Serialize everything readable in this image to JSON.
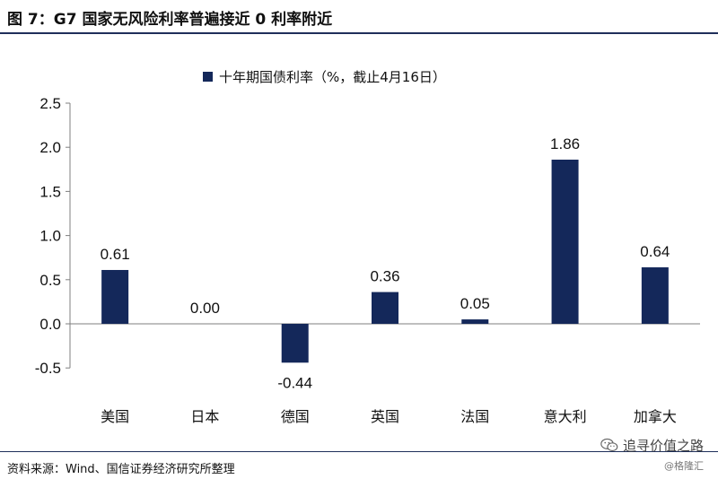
{
  "header": {
    "title": "图 7：G7 国家无风险利率普遍接近 0 利率附近"
  },
  "footer": {
    "source": "资料来源：Wind、国信证券经济研究所整理"
  },
  "watermark": {
    "account": "追寻价值之路",
    "handle": "@格隆汇",
    "icon": "wechat-icon"
  },
  "chart_data": {
    "type": "bar",
    "categories": [
      "美国",
      "日本",
      "德国",
      "英国",
      "法国",
      "意大利",
      "加拿大"
    ],
    "series": [
      {
        "name": "十年期国债利率（%，截止4月16日）",
        "values": [
          0.61,
          0.0,
          -0.44,
          0.36,
          0.05,
          1.86,
          0.64
        ],
        "data_labels": [
          "0.61",
          "0.00",
          "-0.44",
          "0.36",
          "0.05",
          "1.86",
          "0.64"
        ]
      }
    ],
    "yticks": [
      "2.5",
      "2.0",
      "1.5",
      "1.0",
      "0.5",
      "0.0",
      "-0.5"
    ],
    "ylim": [
      -0.5,
      2.5
    ],
    "grid": false,
    "legend_position": "top-center",
    "colors": {
      "bar": "#14285a",
      "axis": "#7f7f7f"
    }
  }
}
